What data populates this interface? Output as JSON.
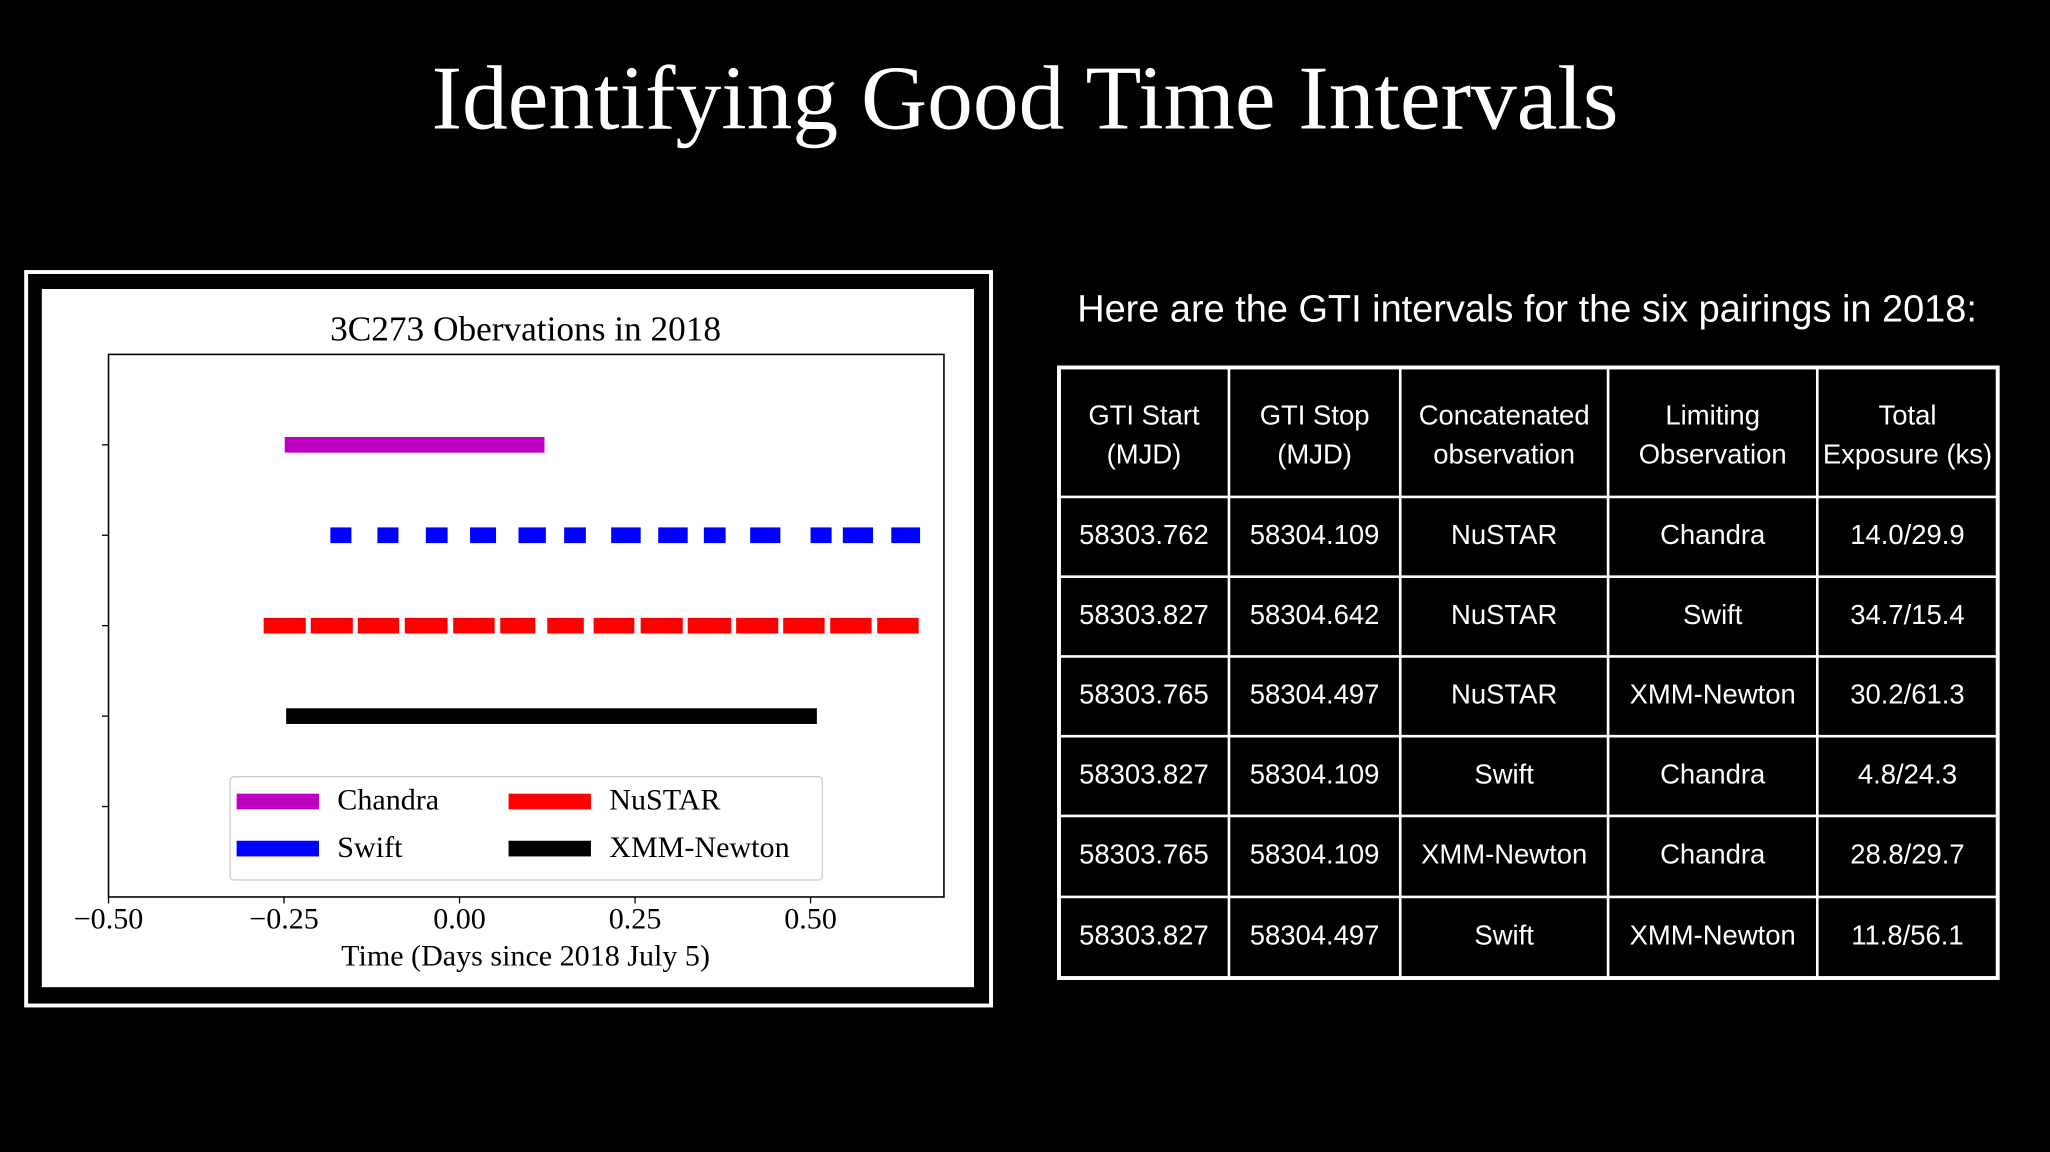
{
  "title": "Identifying Good Time Intervals",
  "chart_data": {
    "type": "interval",
    "title": "3C273 Obervations in 2018",
    "xlabel": "Time (Days since 2018 July 5)",
    "xlim": [
      -0.5,
      0.69
    ],
    "xticks": [
      {
        "value": -0.5,
        "label": "−0.50"
      },
      {
        "value": -0.25,
        "label": "−0.25"
      },
      {
        "value": 0,
        "label": "0.00"
      },
      {
        "value": 0.25,
        "label": "0.25"
      },
      {
        "value": 0.5,
        "label": "0.50"
      }
    ],
    "ylim": [
      -1,
      5
    ],
    "yticks": [
      0,
      1,
      2,
      3,
      4
    ],
    "legend": "lower center",
    "series": [
      {
        "name": "Chandra",
        "color": "#bf00bf",
        "y": 4,
        "intervals": [
          [
            -0.249,
            0.121
          ]
        ]
      },
      {
        "name": "Swift",
        "color": "#0000ff",
        "y": 3,
        "intervals": [
          [
            -0.184,
            -0.154
          ],
          [
            -0.117,
            -0.087
          ],
          [
            -0.048,
            -0.017
          ],
          [
            0.015,
            0.052
          ],
          [
            0.084,
            0.123
          ],
          [
            0.149,
            0.18
          ],
          [
            0.216,
            0.258
          ],
          [
            0.283,
            0.325
          ],
          [
            0.348,
            0.379
          ],
          [
            0.414,
            0.457
          ],
          [
            0.5,
            0.53
          ],
          [
            0.546,
            0.589
          ],
          [
            0.615,
            0.656
          ]
        ]
      },
      {
        "name": "NuSTAR",
        "color": "#ff0000",
        "y": 2,
        "intervals": [
          [
            -0.279,
            -0.219
          ],
          [
            -0.212,
            -0.152
          ],
          [
            -0.145,
            -0.086
          ],
          [
            -0.078,
            -0.017
          ],
          [
            -0.009,
            0.05
          ],
          [
            0.058,
            0.108
          ],
          [
            0.125,
            0.177
          ],
          [
            0.191,
            0.249
          ],
          [
            0.258,
            0.318
          ],
          [
            0.325,
            0.387
          ],
          [
            0.394,
            0.454
          ],
          [
            0.461,
            0.52
          ],
          [
            0.528,
            0.587
          ],
          [
            0.595,
            0.654
          ]
        ]
      },
      {
        "name": "XMM-Newton",
        "color": "#000000",
        "y": 1,
        "intervals": [
          [
            -0.247,
            0.509
          ]
        ]
      }
    ]
  },
  "table": {
    "caption": "Here are the GTI intervals for the six pairings in 2018:",
    "header": [
      [
        "GTI Start",
        "(MJD)"
      ],
      [
        "GTI Stop",
        "(MJD)"
      ],
      [
        "Concatenated",
        "observation"
      ],
      [
        "Limiting",
        "Observation"
      ],
      [
        "Total",
        "Exposure (ks)"
      ]
    ],
    "rows": [
      [
        "58303.762",
        "58304.109",
        "NuSTAR",
        "Chandra",
        "14.0/29.9"
      ],
      [
        "58303.827",
        "58304.642",
        "NuSTAR",
        "Swift",
        "34.7/15.4"
      ],
      [
        "58303.765",
        "58304.497",
        "NuSTAR",
        "XMM-Newton",
        "30.2/61.3"
      ],
      [
        "58303.827",
        "58304.109",
        "Swift",
        "Chandra",
        "4.8/24.3"
      ],
      [
        "58303.765",
        "58304.109",
        "XMM-Newton",
        "Chandra",
        "28.8/29.7"
      ],
      [
        "58303.827",
        "58304.497",
        "Swift",
        "XMM-Newton",
        "11.8/56.1"
      ]
    ]
  }
}
